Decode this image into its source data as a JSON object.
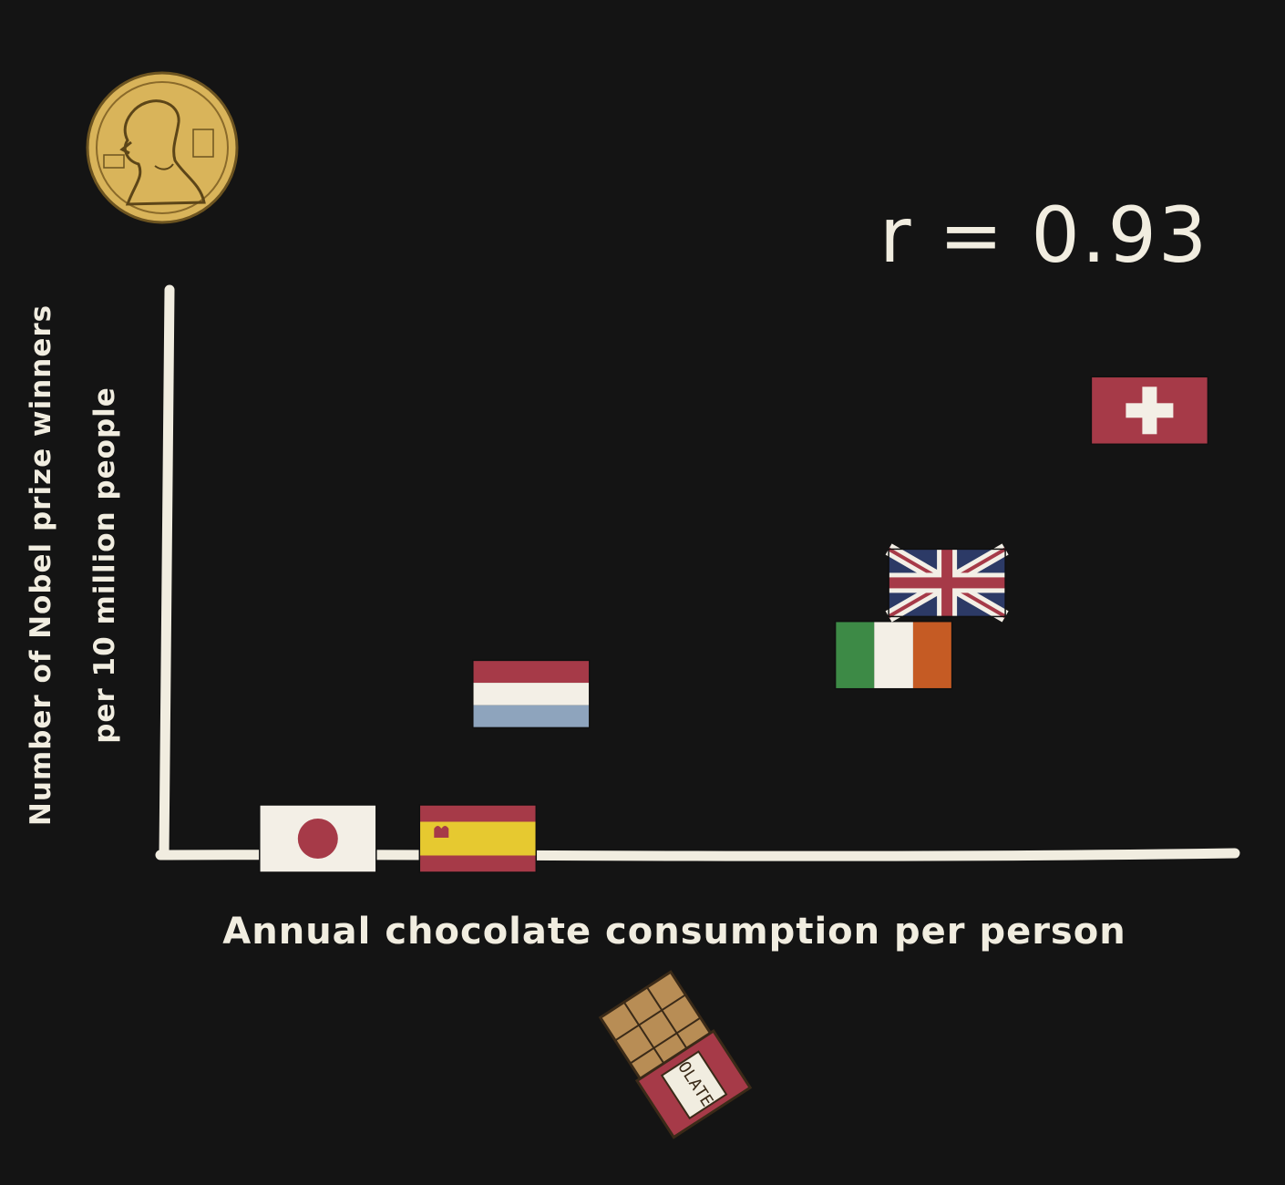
{
  "chart_data": {
    "type": "scatter",
    "title": "",
    "xlabel": "Annual chocolate consumption per person",
    "ylabel_lines": [
      "Number of Nobel prize winners",
      "per 10 million people"
    ],
    "annotation": "r = 0.93",
    "x_unit": "relative",
    "y_unit": "relative",
    "xlim": [
      0,
      10
    ],
    "ylim": [
      0,
      10
    ],
    "points": [
      {
        "name": "Japan",
        "icon": "japan-flag",
        "x": 1.4,
        "y": 0.0
      },
      {
        "name": "Spain",
        "icon": "spain-flag",
        "x": 2.9,
        "y": 0.0
      },
      {
        "name": "Netherlands",
        "icon": "netherlands-flag",
        "x": 3.4,
        "y": 2.6
      },
      {
        "name": "Ireland",
        "icon": "ireland-flag",
        "x": 6.8,
        "y": 3.3
      },
      {
        "name": "United Kingdom",
        "icon": "uk-flag",
        "x": 7.3,
        "y": 4.6
      },
      {
        "name": "Switzerland",
        "icon": "switzerland-flag",
        "x": 9.2,
        "y": 7.7
      }
    ],
    "decorations": {
      "y_axis_icon": "nobel-medal-icon",
      "x_axis_icon": "chocolate-bar-icon",
      "chocolate_wrapper_text": "OLATE"
    },
    "colors": {
      "background": "#141414",
      "chalk": "#f1ede0",
      "flag_red": "#a63a48",
      "medal_gold": "#d9b45a"
    }
  }
}
